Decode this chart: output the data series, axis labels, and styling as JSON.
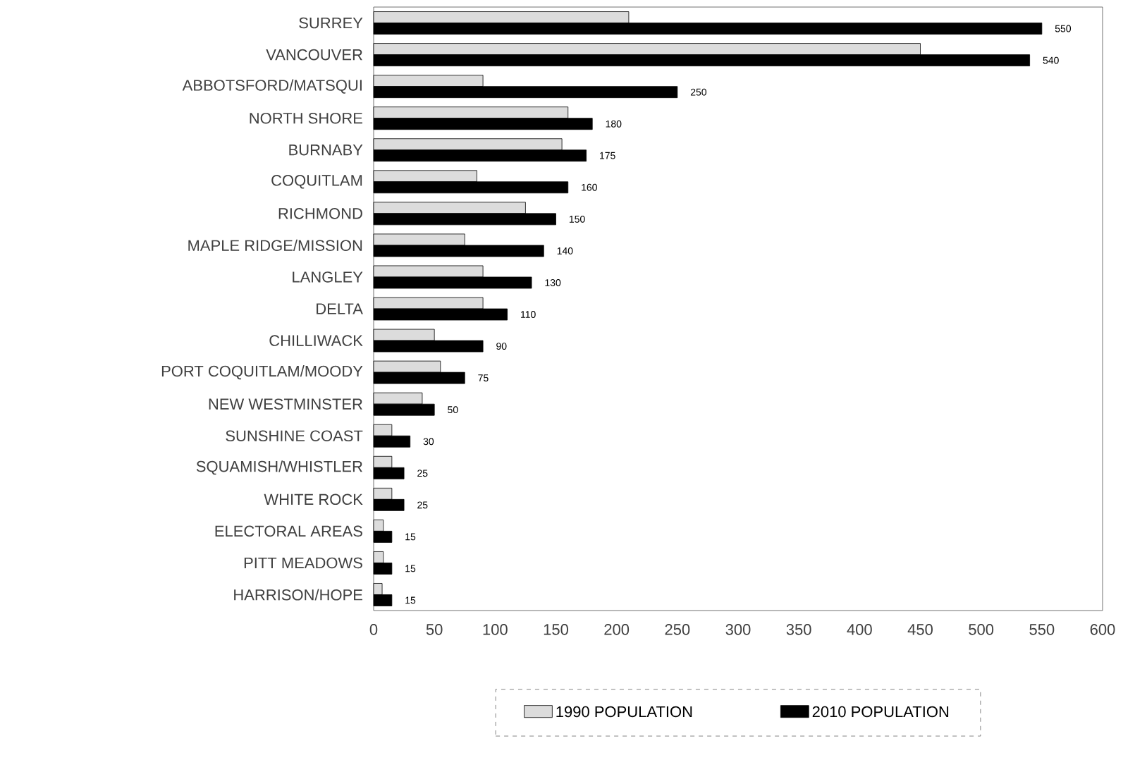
{
  "chart_data": {
    "type": "bar",
    "orientation": "horizontal",
    "categories": [
      "SURREY",
      "VANCOUVER",
      "ABBOTSFORD/MATSQUI",
      "NORTH SHORE",
      "BURNABY",
      "COQUITLAM",
      "RICHMOND",
      "MAPLE RIDGE/MISSION",
      "LANGLEY",
      "DELTA",
      "CHILLIWACK",
      "PORT COQUITLAM/MOODY",
      "NEW WESTMINSTER",
      "SUNSHINE COAST",
      "SQUAMISH/WHISTLER",
      "WHITE ROCK",
      "ELECTORAL AREAS",
      "PITT MEADOWS",
      "HARRISON/HOPE"
    ],
    "series": [
      {
        "name": "1990 POPULATION",
        "color": "#dcdcdc",
        "values": [
          210,
          450,
          90,
          160,
          155,
          85,
          125,
          75,
          90,
          90,
          50,
          55,
          40,
          15,
          15,
          15,
          8,
          8,
          7
        ]
      },
      {
        "name": "2010 POPULATION",
        "color": "#000000",
        "values": [
          550,
          540,
          250,
          180,
          175,
          160,
          150,
          140,
          130,
          110,
          90,
          75,
          50,
          30,
          25,
          25,
          15,
          15,
          15
        ],
        "value_labels": [
          "550",
          "540",
          "250",
          "180",
          "175",
          "160",
          "150",
          "140",
          "130",
          "110",
          "90",
          "75",
          "50",
          "30",
          "25",
          "25",
          "15",
          "15",
          "15"
        ]
      }
    ],
    "xlim": [
      0,
      600
    ],
    "xticks": [
      0,
      50,
      100,
      150,
      200,
      250,
      300,
      350,
      400,
      450,
      500,
      550,
      600
    ],
    "legend": "bottom",
    "grid": false
  }
}
